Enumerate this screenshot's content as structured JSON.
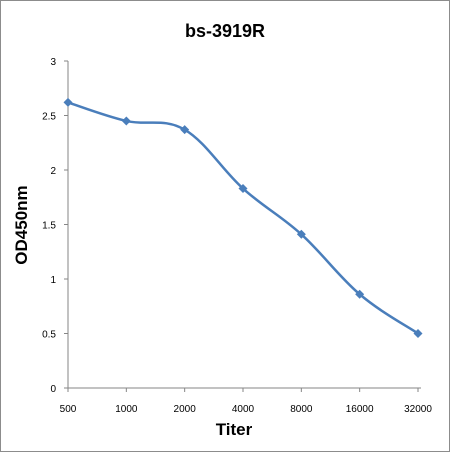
{
  "chart_data": {
    "type": "line",
    "title": "bs-3919R",
    "xlabel": "Titer",
    "ylabel": "OD450nm",
    "categories": [
      "500",
      "1000",
      "2000",
      "4000",
      "8000",
      "16000",
      "32000"
    ],
    "series": [
      {
        "values": [
          2.62,
          2.45,
          2.37,
          1.83,
          1.41,
          0.86,
          0.5
        ]
      }
    ],
    "ylim": [
      0,
      3
    ],
    "yticks": [
      "0",
      "0.5",
      "1",
      "1.5",
      "2",
      "2.5",
      "3"
    ],
    "grid": false,
    "legend": "none",
    "line_color": "#4a7ebb"
  }
}
